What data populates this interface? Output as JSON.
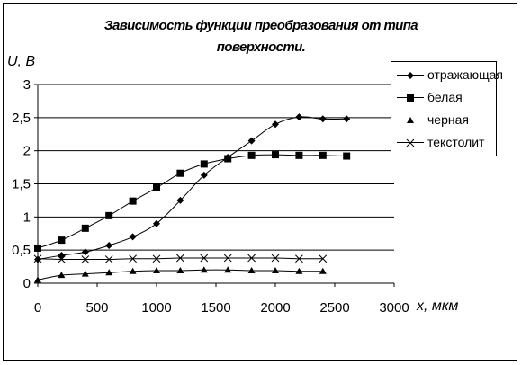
{
  "chart_data": {
    "type": "line",
    "title": "Зависимость функции преобразования от типа поверхности.",
    "title_lines": [
      "Зависимость функции преобразования от типа",
      "поверхности."
    ],
    "xlabel": "x, мкм",
    "ylabel": "U, В",
    "xlim": [
      0,
      3000
    ],
    "ylim": [
      0,
      3
    ],
    "xticks": [
      0,
      500,
      1000,
      1500,
      2000,
      2500,
      3000
    ],
    "yticks": [
      0,
      0.5,
      1,
      1.5,
      2,
      2.5,
      3
    ],
    "xtick_labels": [
      "0",
      "500",
      "1000",
      "1500",
      "2000",
      "2500",
      "3000"
    ],
    "ytick_labels": [
      "0",
      "0,5",
      "1",
      "1,5",
      "2",
      "2,5",
      "3"
    ],
    "grid": {
      "horizontal": true,
      "vertical": false
    },
    "legend_position": "right",
    "series": [
      {
        "name": "отражающая",
        "marker": "diamond",
        "x": [
          0,
          200,
          400,
          600,
          800,
          1000,
          1200,
          1400,
          1600,
          1800,
          2000,
          2200,
          2400,
          2600
        ],
        "y": [
          0.36,
          0.42,
          0.47,
          0.57,
          0.7,
          0.9,
          1.25,
          1.63,
          1.9,
          2.15,
          2.4,
          2.51,
          2.48,
          2.48
        ]
      },
      {
        "name": "белая",
        "marker": "square",
        "x": [
          0,
          200,
          400,
          600,
          800,
          1000,
          1200,
          1400,
          1600,
          1800,
          2000,
          2200,
          2400,
          2600
        ],
        "y": [
          0.53,
          0.65,
          0.83,
          1.02,
          1.24,
          1.44,
          1.66,
          1.8,
          1.88,
          1.93,
          1.94,
          1.93,
          1.93,
          1.92
        ]
      },
      {
        "name": "черная",
        "marker": "triangle",
        "x": [
          0,
          200,
          400,
          600,
          800,
          1000,
          1200,
          1400,
          1600,
          1800,
          2000,
          2200,
          2400
        ],
        "y": [
          0.05,
          0.12,
          0.14,
          0.16,
          0.18,
          0.19,
          0.19,
          0.2,
          0.2,
          0.19,
          0.19,
          0.18,
          0.18
        ]
      },
      {
        "name": "текстолит",
        "marker": "x",
        "x": [
          0,
          200,
          400,
          600,
          800,
          1000,
          1200,
          1400,
          1600,
          1800,
          2000,
          2200,
          2400
        ],
        "y": [
          0.37,
          0.36,
          0.36,
          0.36,
          0.37,
          0.37,
          0.38,
          0.38,
          0.38,
          0.38,
          0.38,
          0.37,
          0.37
        ]
      }
    ]
  }
}
